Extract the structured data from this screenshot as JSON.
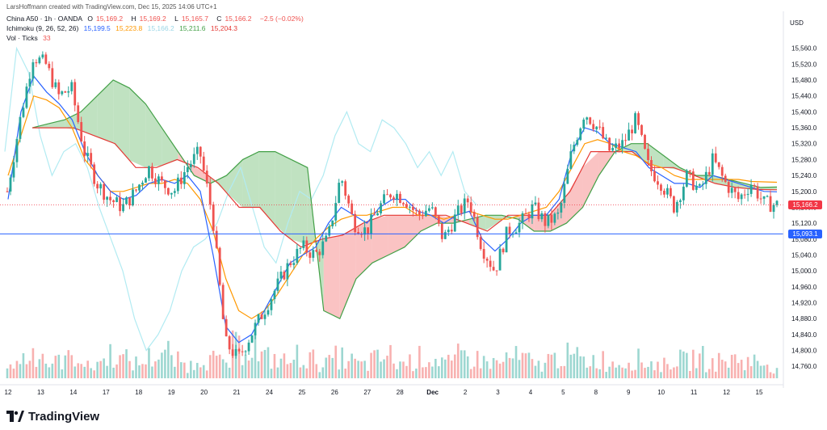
{
  "header": {
    "credit": "LarsHoffmann created with TradingView.com, Dec 15, 2025 14:06 UTC+1",
    "symbol": "China A50 · 1h · OANDA",
    "o_label": "O",
    "o_value": "15,169.2",
    "h_label": "H",
    "h_value": "15,169.2",
    "l_label": "L",
    "l_value": "15,165.7",
    "c_label": "C",
    "c_value": "15,166.2",
    "change": "−2.5 (−0.02%)",
    "ichimoku_label": "Ichimoku (9, 26, 52, 26)",
    "ichi_v1": "15,199.5",
    "ichi_v2": "15,223.8",
    "ichi_v3": "15,166.2",
    "ichi_v4": "15,211.6",
    "ichi_v5": "15,204.3",
    "vol_label": "Vol · Ticks",
    "vol_value": "33"
  },
  "axis": {
    "currency": "USD"
  },
  "footer": {
    "brand": "TradingView"
  },
  "colors": {
    "up": "#26a69a",
    "down": "#ef5350",
    "conversion": "#2962ff",
    "base": "#ff9800",
    "lagging": "#b2ebf2",
    "spanA": "#43a047",
    "spanB": "#e53935",
    "cloudBull": "#a5d6a7",
    "cloudBear": "#f8a9a9",
    "lastPrice": "#f23645",
    "hline": "#2962ff"
  },
  "chart_data": {
    "type": "candlestick",
    "price_scale": {
      "min": 14730,
      "max": 15600
    },
    "y_ticks": [
      "15,560.0",
      "15,520.0",
      "15,480.0",
      "15,440.0",
      "15,400.0",
      "15,360.0",
      "15,320.0",
      "15,280.0",
      "15,240.0",
      "15,200.0",
      "15,160.0",
      "15,120.0",
      "15,080.0",
      "15,040.0",
      "15,000.0",
      "14,960.0",
      "14,920.0",
      "14,880.0",
      "14,840.0",
      "14,800.0",
      "14,760.0"
    ],
    "y_tick_values": [
      15560,
      15520,
      15480,
      15440,
      15400,
      15360,
      15320,
      15280,
      15240,
      15200,
      15160,
      15120,
      15080,
      15040,
      15000,
      14960,
      14920,
      14880,
      14840,
      14800,
      14760
    ],
    "x_ticks": [
      "12",
      "13",
      "14",
      "17",
      "18",
      "19",
      "20",
      "21",
      "24",
      "25",
      "26",
      "27",
      "28",
      "Dec",
      "2",
      "3",
      "4",
      "5",
      "8",
      "9",
      "10",
      "11",
      "12",
      "15"
    ],
    "last_price": {
      "label": "15,166.2",
      "value": 15166.2
    },
    "horizontal_line": {
      "label": "15,093.1",
      "value": 15093.1
    },
    "close_path": [
      15200,
      15380,
      15540,
      15520,
      15440,
      15460,
      15300,
      15220,
      15180,
      15160,
      15200,
      15260,
      15220,
      15200,
      15260,
      15300,
      15140,
      14820,
      14780,
      14840,
      14900,
      14960,
      15020,
      15060,
      15040,
      15080,
      15240,
      15120,
      15100,
      15160,
      15200,
      15180,
      15140,
      15160,
      15080,
      15140,
      15180,
      15060,
      15000,
      15100,
      15120,
      15160,
      15120,
      15140,
      15300,
      15400,
      15360,
      15300,
      15320,
      15380,
      15260,
      15220,
      15160,
      15240,
      15200,
      15280,
      15220,
      15180,
      15220,
      15170,
      15166
    ],
    "conversion_path": [
      15180,
      15400,
      15490,
      15450,
      15420,
      15380,
      15300,
      15240,
      15200,
      15180,
      15190,
      15220,
      15230,
      15220,
      15240,
      15200,
      15040,
      14860,
      14820,
      14840,
      14900,
      14960,
      15020,
      15040,
      15060,
      15120,
      15160,
      15140,
      15120,
      15160,
      15180,
      15180,
      15150,
      15140,
      15120,
      15140,
      15150,
      15080,
      15050,
      15080,
      15120,
      15140,
      15140,
      15180,
      15300,
      15360,
      15350,
      15320,
      15310,
      15300,
      15260,
      15240,
      15220,
      15220,
      15210,
      15240,
      15230,
      15220,
      15210,
      15200,
      15199
    ],
    "base_path": [
      15240,
      15340,
      15440,
      15430,
      15410,
      15360,
      15280,
      15240,
      15200,
      15200,
      15210,
      15220,
      15220,
      15230,
      15220,
      15180,
      15100,
      14980,
      14900,
      14880,
      14900,
      14940,
      14990,
      15040,
      15080,
      15110,
      15130,
      15140,
      15140,
      15150,
      15160,
      15160,
      15140,
      15140,
      15130,
      15140,
      15150,
      15140,
      15130,
      15130,
      15140,
      15150,
      15160,
      15200,
      15260,
      15320,
      15330,
      15320,
      15300,
      15290,
      15270,
      15260,
      15240,
      15230,
      15230,
      15230,
      15230,
      15230,
      15225,
      15224,
      15223
    ],
    "lagging_path": [
      15300,
      15560,
      15500,
      15340,
      15240,
      15300,
      15320,
      15260,
      15160,
      15080,
      15000,
      14880,
      14800,
      14840,
      14900,
      15000,
      15060,
      15080,
      15120,
      15200,
      15260,
      15160,
      15060,
      15020,
      15120,
      15200,
      15180,
      15240,
      15340,
      15400,
      15320,
      15300,
      15380,
      15360,
      15320,
      15260,
      15300,
      15240,
      15300,
      15200,
      15166
    ],
    "span_a_path": [
      15360,
      15370,
      15380,
      15400,
      15440,
      15480,
      15460,
      15420,
      15360,
      15300,
      15240,
      15220,
      15240,
      15280,
      15300,
      15300,
      15280,
      15260,
      14900,
      14880,
      14980,
      15020,
      15040,
      15060,
      15100,
      15120,
      15120,
      15130,
      15140,
      15140,
      15130,
      15100,
      15100,
      15120,
      15160,
      15240,
      15300,
      15320,
      15320,
      15290,
      15260,
      15240,
      15240,
      15230,
      15220,
      15210,
      15211
    ],
    "span_b_path": [
      15360,
      15360,
      15360,
      15340,
      15320,
      15260,
      15260,
      15280,
      15260,
      15220,
      15160,
      15160,
      15100,
      15060,
      15080,
      15090,
      15120,
      15140,
      15140,
      15140,
      15140,
      15120,
      15100,
      15140,
      15140,
      15140,
      15200,
      15300,
      15300,
      15300,
      15260,
      15260,
      15240,
      15220,
      15210,
      15205,
      15204
    ],
    "volume_profile": [
      0.35,
      0.55,
      0.7,
      0.4,
      0.5,
      0.6,
      0.3,
      0.45,
      0.65,
      0.5,
      0.4,
      0.55,
      0.7,
      0.45,
      0.35,
      0.6,
      0.5,
      0.4,
      0.8,
      0.9,
      0.55,
      0.5,
      0.45,
      0.6,
      0.5,
      0.4,
      0.55,
      0.45,
      0.35,
      0.5,
      0.6,
      0.4,
      0.45,
      0.55,
      0.5,
      0.4,
      0.6,
      0.5,
      0.45,
      0.4,
      0.55,
      0.5,
      0.35,
      0.5,
      0.6,
      0.55,
      0.45,
      0.5,
      0.4,
      0.45,
      0.5,
      0.4,
      0.35,
      0.5,
      0.45,
      0.55,
      0.4,
      0.45,
      0.5,
      0.45,
      0.4,
      0.3
    ]
  }
}
